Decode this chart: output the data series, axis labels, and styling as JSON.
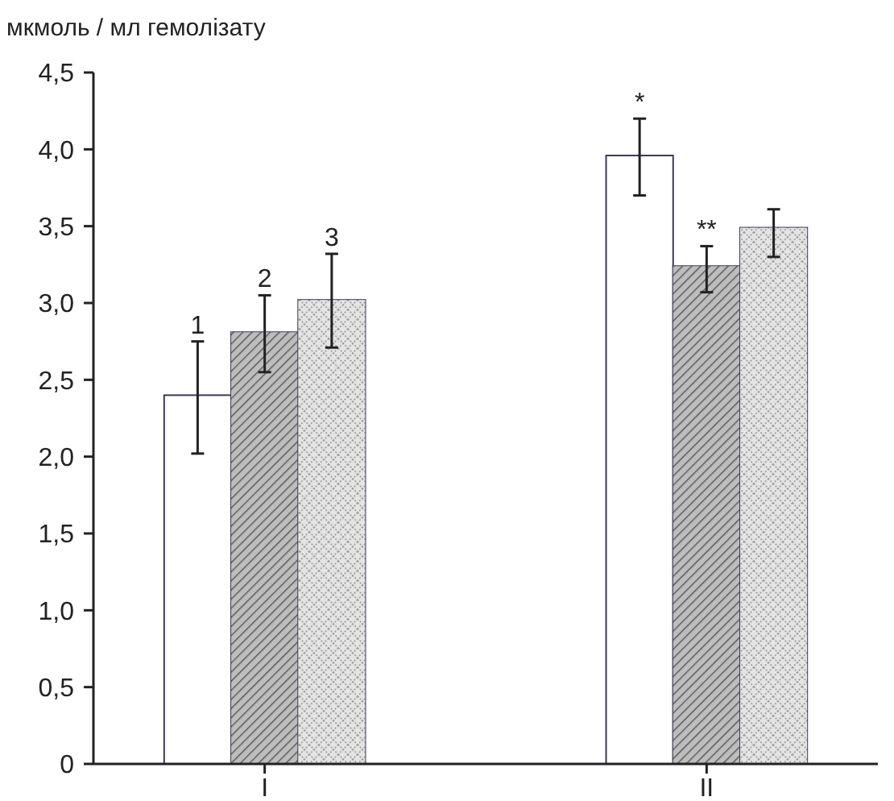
{
  "chart_data": {
    "type": "bar",
    "ylabel": "мкмоль / мл гемолізату",
    "categories": [
      "I",
      "II"
    ],
    "series": [
      {
        "color": "#ffffff",
        "values": [
          2.4,
          3.96
        ],
        "errors": [
          [
            2.02,
            2.75
          ],
          [
            3.7,
            4.2
          ]
        ]
      },
      {
        "color": "#8c8c8c",
        "values": [
          2.81,
          3.24
        ],
        "errors": [
          [
            2.55,
            3.05
          ],
          [
            3.07,
            3.37
          ]
        ]
      },
      {
        "color": "#c8c8c8",
        "values": [
          3.02,
          3.49
        ],
        "errors": [
          [
            2.71,
            3.32
          ],
          [
            3.3,
            3.61
          ]
        ]
      }
    ],
    "ylim": [
      0,
      4.5
    ],
    "yticks": [
      0,
      {
        "value": 0.5,
        "label": "0,5"
      },
      {
        "value": 1,
        "label": "1,0"
      },
      {
        "value": 1.5,
        "label": "1,5"
      },
      {
        "value": 2,
        "label": "2,0"
      },
      {
        "value": 2.5,
        "label": "2,5"
      },
      {
        "value": 3,
        "label": "3,0"
      },
      {
        "value": 3.5,
        "label": "3,5"
      },
      {
        "value": 4,
        "label": "4,0"
      },
      {
        "value": 4.5,
        "label": "4,5"
      }
    ],
    "annotations": [
      "1",
      "2",
      "3",
      "*",
      "**"
    ],
    "grid": false
  }
}
